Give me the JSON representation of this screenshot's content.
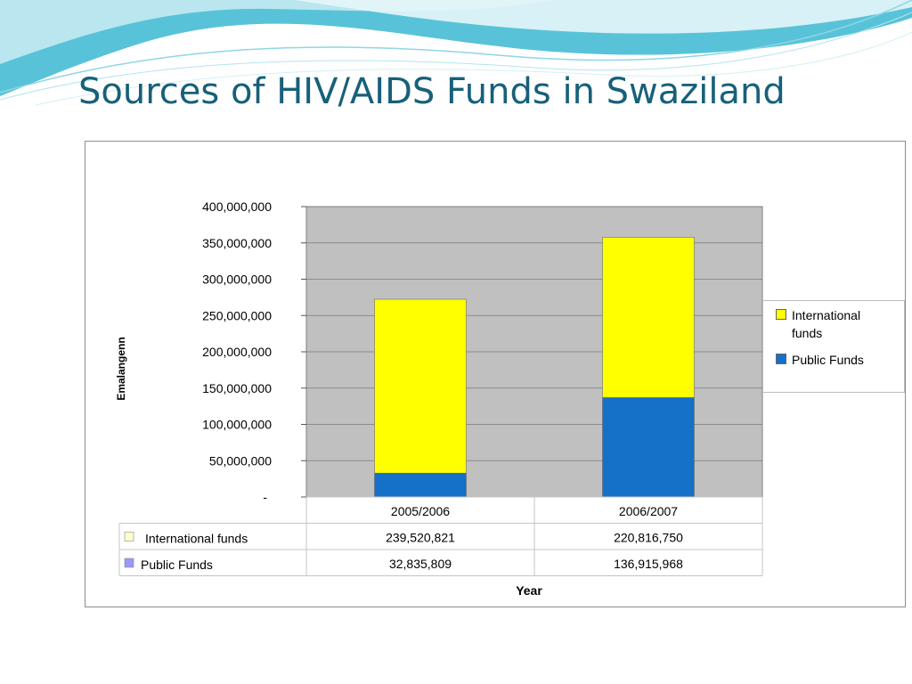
{
  "slide": {
    "title": "Sources of HIV/AIDS Funds in Swaziland"
  },
  "colors": {
    "title": "#17607a",
    "plot_bg": "#c0c0c0",
    "international": "#ffff00",
    "public": "#1570c8",
    "table_international_swatch": "#ffffcc",
    "table_public_swatch": "#9999ff"
  },
  "chart_data": {
    "type": "bar",
    "stacked": true,
    "title": "",
    "xlabel": "Year",
    "ylabel": "Emalangenn",
    "ylim": [
      0,
      400000000
    ],
    "yticks": [
      0,
      50000000,
      100000000,
      150000000,
      200000000,
      250000000,
      300000000,
      350000000,
      400000000
    ],
    "ytick_labels": [
      "-",
      "50,000,000",
      "100,000,000",
      "150,000,000",
      "200,000,000",
      "250,000,000",
      "300,000,000",
      "350,000,000",
      "400,000,000"
    ],
    "categories": [
      "2005/2006",
      "2006/2007"
    ],
    "series": [
      {
        "name": "Public  Funds",
        "values": [
          32835809,
          136915968
        ],
        "labels": [
          "32,835,809",
          "136,915,968"
        ],
        "color": "#1570c8"
      },
      {
        "name": "International funds",
        "values": [
          239520821,
          220816750
        ],
        "labels": [
          "239,520,821",
          "220,816,750"
        ],
        "color": "#ffff00"
      }
    ],
    "grid": true,
    "legend_position": "right",
    "legend": [
      {
        "label": "International funds",
        "color": "#ffff00"
      },
      {
        "label": "Public  Funds",
        "color": "#1570c8"
      }
    ],
    "data_table": {
      "rows": [
        {
          "label": "International funds",
          "swatch": "#ffffcc",
          "values": [
            "239,520,821",
            "220,816,750"
          ]
        },
        {
          "label": "Public  Funds",
          "swatch": "#9999ff",
          "values": [
            "32,835,809",
            "136,915,968"
          ]
        }
      ]
    }
  }
}
